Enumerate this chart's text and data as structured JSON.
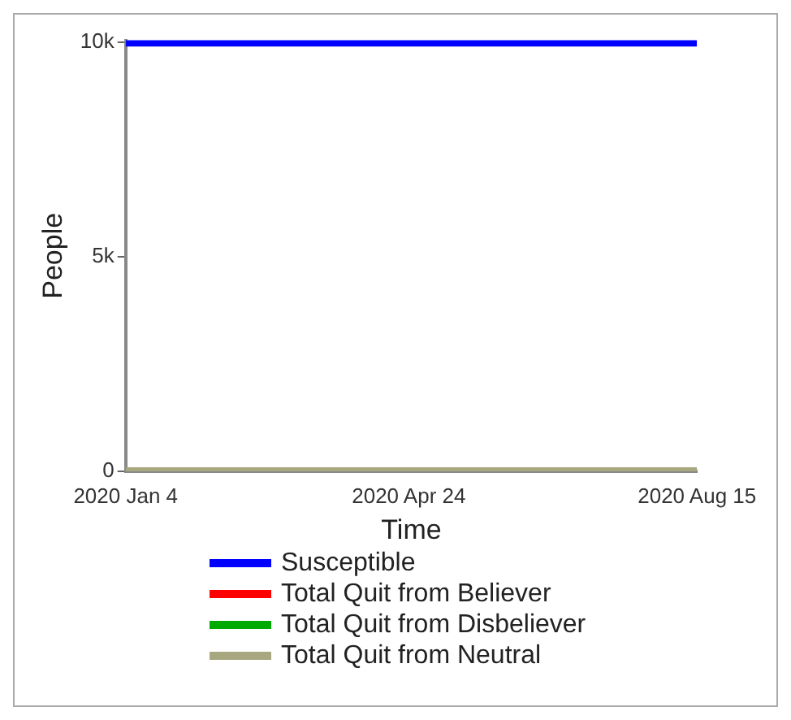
{
  "chart_data": {
    "type": "line",
    "xlabel": "Time",
    "ylabel": "People",
    "x": [
      "2020-01-04",
      "2020-04-24",
      "2020-08-15"
    ],
    "series": [
      {
        "name": "Susceptible",
        "color": "#0000ff",
        "values": [
          10000,
          10000,
          10000
        ]
      },
      {
        "name": "Total Quit from Believer",
        "color": "#ff0000",
        "values": [
          null,
          null,
          null
        ]
      },
      {
        "name": "Total Quit from Disbeliever",
        "color": "#00aa00",
        "values": [
          null,
          null,
          null
        ]
      },
      {
        "name": "Total Quit from Neutral",
        "color": "#a8a880",
        "values": [
          0,
          0,
          0
        ]
      }
    ],
    "xlim": [
      "2020-01-04",
      "2020-08-15"
    ],
    "xticks": [
      {
        "value": "2020-01-04",
        "label": "2020 Jan 4"
      },
      {
        "value": "2020-04-24",
        "label": "2020 Apr 24"
      },
      {
        "value": "2020-08-15",
        "label": "2020 Aug 15"
      }
    ],
    "ylim": [
      0,
      10050
    ],
    "yticks": [
      {
        "value": 0,
        "label": "0"
      },
      {
        "value": 5000,
        "label": "5k"
      },
      {
        "value": 10000,
        "label": "10k"
      }
    ],
    "grid": false,
    "legend": "bottom",
    "marker": "none",
    "line_style": "solid"
  }
}
